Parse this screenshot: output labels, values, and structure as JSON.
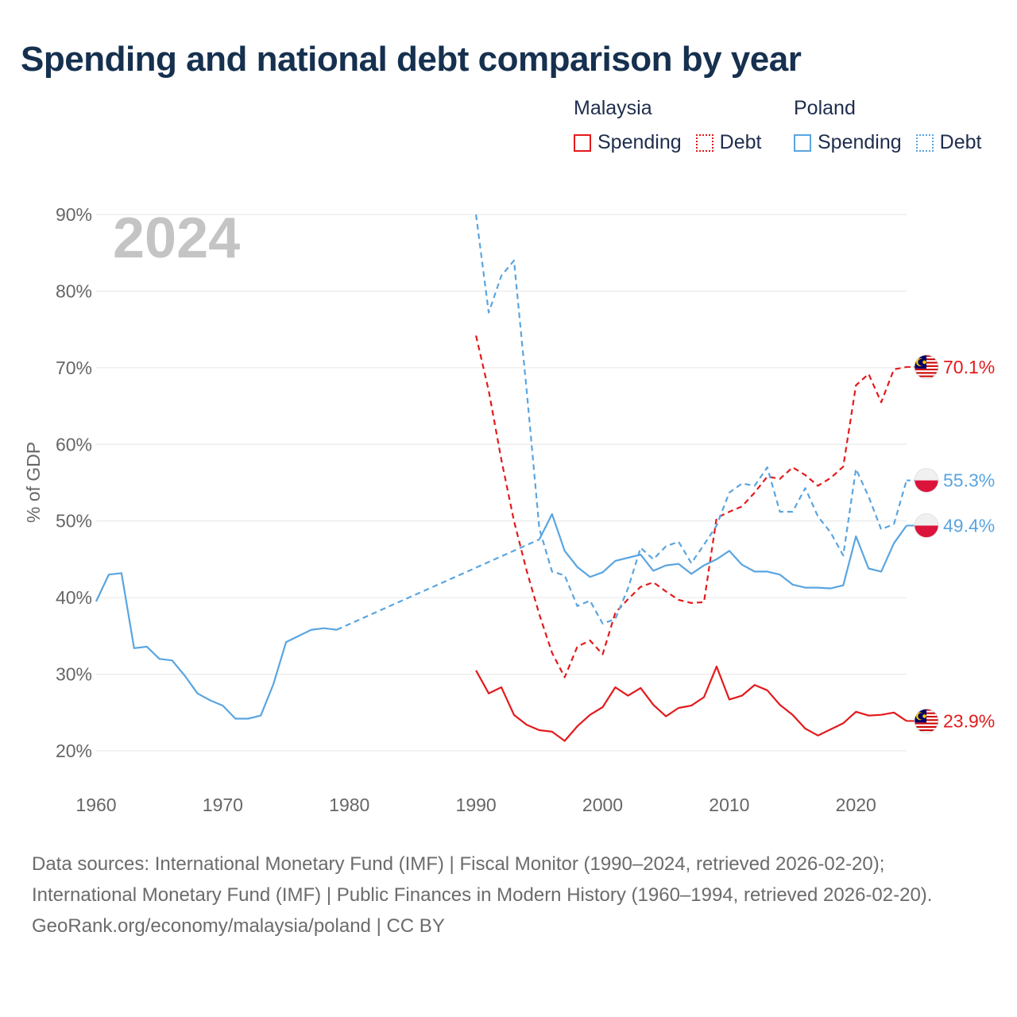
{
  "title": "Spending and national debt comparison by year",
  "legend": {
    "groups": [
      {
        "name": "Malaysia",
        "color": "#e31a1c",
        "items": [
          {
            "label": "Spending",
            "style": "solid"
          },
          {
            "label": "Debt",
            "style": "dotted"
          }
        ]
      },
      {
        "name": "Poland",
        "color": "#5aa5e0",
        "items": [
          {
            "label": "Spending",
            "style": "solid"
          },
          {
            "label": "Debt",
            "style": "dotted"
          }
        ]
      }
    ]
  },
  "year_label": "2024",
  "footer": {
    "sources": "Data sources: International Monetary Fund (IMF) | Fiscal Monitor (1990–2024, retrieved 2026-02-20); International Monetary Fund (IMF) | Public Finances in Modern History (1960–1994, retrieved 2026-02-20).",
    "credit": "GeoRank.org/economy/malaysia/poland | CC BY"
  },
  "chart_data": {
    "type": "line",
    "title": "Spending and national debt comparison by year",
    "xlabel": "",
    "ylabel": "% of GDP",
    "xlim": [
      1960,
      2024
    ],
    "ylim": [
      20,
      90
    ],
    "x_ticks": [
      1960,
      1970,
      1980,
      1990,
      2000,
      2010,
      2020
    ],
    "y_ticks": [
      20,
      30,
      40,
      50,
      60,
      70,
      80,
      90
    ],
    "y_tick_labels": [
      "20%",
      "30%",
      "40%",
      "50%",
      "60%",
      "70%",
      "80%",
      "90%"
    ],
    "grid": true,
    "end_labels": {
      "malaysia_debt": "70.1%",
      "poland_debt": "55.3%",
      "poland_spending": "49.4%",
      "malaysia_spending": "23.9%"
    },
    "series": [
      {
        "name": "Malaysia Spending",
        "id": "malaysia_spending",
        "color": "#e31a1c",
        "style": "solid",
        "x": [
          1990,
          1991,
          1992,
          1993,
          1994,
          1995,
          1996,
          1997,
          1998,
          1999,
          2000,
          2001,
          2002,
          2003,
          2004,
          2005,
          2006,
          2007,
          2008,
          2009,
          2010,
          2011,
          2012,
          2013,
          2014,
          2015,
          2016,
          2017,
          2018,
          2019,
          2020,
          2021,
          2022,
          2023,
          2024
        ],
        "y": [
          30.5,
          27.5,
          28.3,
          24.7,
          23.4,
          22.7,
          22.5,
          21.3,
          23.2,
          24.7,
          25.7,
          28.3,
          27.2,
          28.2,
          26.0,
          24.5,
          25.6,
          25.9,
          27.0,
          31.0,
          26.7,
          27.2,
          28.6,
          27.9,
          26.0,
          24.7,
          22.9,
          22.0,
          22.8,
          23.6,
          25.1,
          24.6,
          24.7,
          25.0,
          23.9
        ]
      },
      {
        "name": "Malaysia Debt",
        "id": "malaysia_debt",
        "color": "#e31a1c",
        "style": "dashed",
        "x": [
          1990,
          1991,
          1992,
          1993,
          1994,
          1995,
          1996,
          1997,
          1998,
          1999,
          2000,
          2001,
          2002,
          2003,
          2004,
          2005,
          2006,
          2007,
          2008,
          2009,
          2010,
          2011,
          2012,
          2013,
          2014,
          2015,
          2016,
          2017,
          2018,
          2019,
          2020,
          2021,
          2022,
          2023,
          2024
        ],
        "y": [
          74.2,
          67.0,
          58.0,
          50.0,
          43.5,
          37.8,
          32.8,
          29.6,
          33.6,
          34.4,
          32.6,
          38.0,
          39.8,
          41.4,
          42.0,
          40.8,
          39.7,
          39.3,
          39.4,
          50.4,
          51.2,
          51.9,
          53.7,
          55.8,
          55.5,
          57.0,
          56.0,
          54.6,
          55.6,
          57.1,
          67.7,
          69.2,
          65.5,
          69.8,
          70.1
        ]
      },
      {
        "name": "Poland Spending",
        "id": "poland_spending",
        "color": "#5aa5e0",
        "style": "solid",
        "x": [
          1960,
          1961,
          1962,
          1963,
          1964,
          1965,
          1966,
          1967,
          1968,
          1969,
          1970,
          1971,
          1972,
          1973,
          1974,
          1975,
          1976,
          1977,
          1978,
          1979,
          null,
          1995,
          1996,
          1997,
          1998,
          1999,
          2000,
          2001,
          2002,
          2003,
          2004,
          2005,
          2006,
          2007,
          2008,
          2009,
          2010,
          2011,
          2012,
          2013,
          2014,
          2015,
          2016,
          2017,
          2018,
          2019,
          2020,
          2021,
          2022,
          2023,
          2024
        ],
        "y": [
          39.5,
          43.0,
          43.2,
          33.4,
          33.6,
          32.0,
          31.8,
          29.8,
          27.5,
          26.6,
          25.9,
          24.2,
          24.2,
          24.6,
          28.7,
          34.2,
          35.0,
          35.8,
          36.0,
          35.8,
          null,
          47.6,
          50.9,
          46.1,
          44.0,
          42.7,
          43.3,
          44.8,
          45.2,
          45.6,
          43.5,
          44.2,
          44.4,
          43.1,
          44.2,
          45.0,
          46.1,
          44.3,
          43.4,
          43.4,
          43.0,
          41.7,
          41.3,
          41.3,
          41.2,
          41.6,
          48.0,
          43.8,
          43.4,
          47.1,
          49.4
        ]
      },
      {
        "name": "Poland Spending (interpolated gap)",
        "id": "poland_spending_gap",
        "color": "#5aa5e0",
        "style": "dashed",
        "x": [
          1979,
          1995
        ],
        "y": [
          35.8,
          47.6
        ]
      },
      {
        "name": "Poland Debt",
        "id": "poland_debt",
        "color": "#5aa5e0",
        "style": "dashed",
        "x": [
          1990,
          1991,
          1992,
          1993,
          1994,
          1995,
          1996,
          1997,
          1998,
          1999,
          2000,
          2001,
          2002,
          2003,
          2004,
          2005,
          2006,
          2007,
          2008,
          2009,
          2010,
          2011,
          2012,
          2013,
          2014,
          2015,
          2016,
          2017,
          2018,
          2019,
          2020,
          2021,
          2022,
          2023,
          2024
        ],
        "y": [
          90.0,
          77.2,
          82.0,
          84.0,
          67.0,
          49.0,
          43.4,
          42.9,
          38.9,
          39.6,
          36.6,
          37.2,
          41.2,
          46.5,
          45.0,
          46.7,
          47.3,
          44.5,
          46.9,
          49.4,
          53.7,
          54.9,
          54.6,
          57.0,
          51.2,
          51.2,
          54.3,
          50.6,
          48.5,
          45.5,
          56.8,
          53.2,
          48.9,
          49.6,
          55.3
        ]
      }
    ]
  }
}
